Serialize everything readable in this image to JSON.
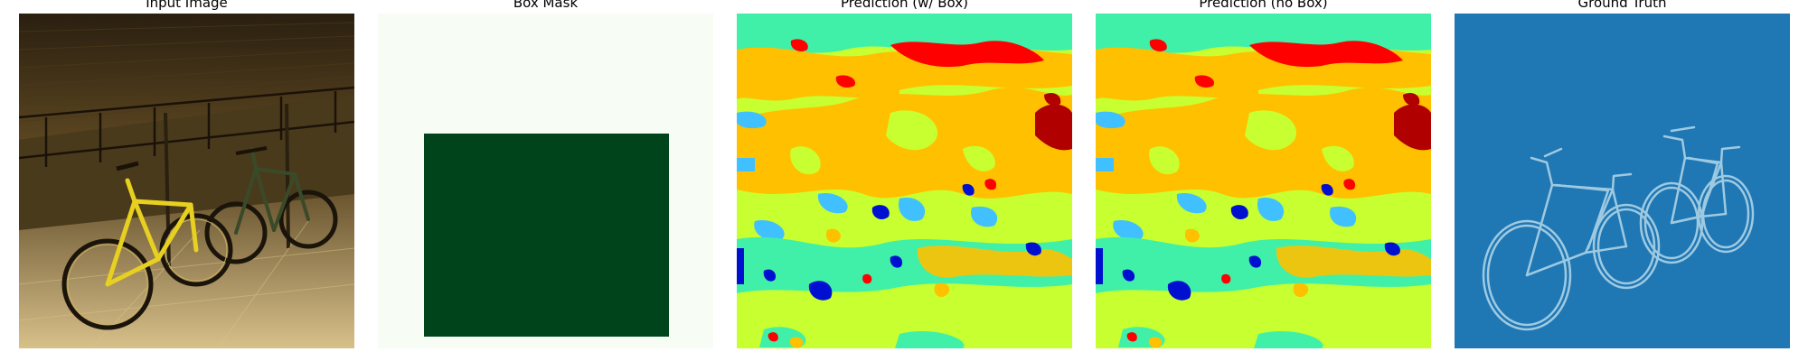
{
  "figure": {
    "panels": [
      {
        "title": "Input Image",
        "content": "photo of bicycles leaning on railings at night"
      },
      {
        "title": "Box Mask",
        "content": "binary mask with a dark green box"
      },
      {
        "title": "Prediction (w/ Box)",
        "content": "segmentation map"
      },
      {
        "title": "Prediction (no Box)",
        "content": "segmentation map"
      },
      {
        "title": "Ground Truth",
        "content": "edge mask of bicycles"
      }
    ],
    "colors": {
      "mask_background": "#f7fcf5",
      "mask_box": "#00441b",
      "ground_truth_background": "#1f77b4",
      "ground_truth_edges": "#9ecae1",
      "segmentation": [
        "#ffc000",
        "#c8ff30",
        "#40f0a8",
        "#40c0ff",
        "#0010d0",
        "#ff0000",
        "#b00000"
      ]
    }
  }
}
